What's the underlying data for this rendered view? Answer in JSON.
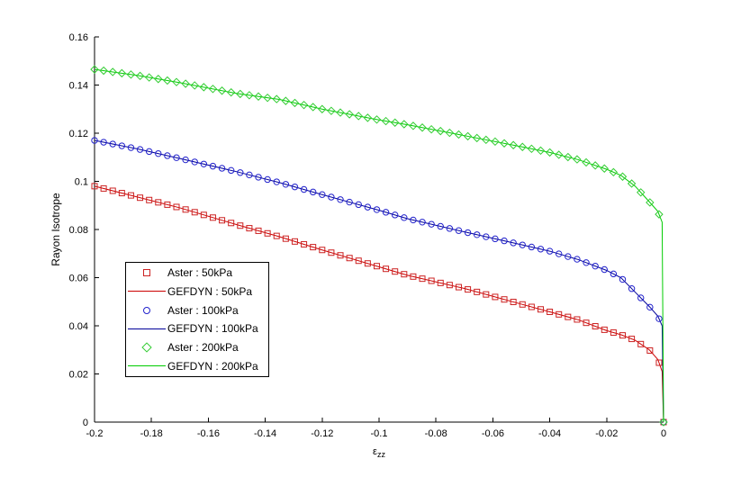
{
  "figure": {
    "background": "#ffffff",
    "axis_color": "#000000"
  },
  "chart_data": {
    "type": "line",
    "title": "",
    "xlabel": "ε_zz",
    "xlabel_base": "ε",
    "xlabel_sub": "zz",
    "ylabel": "Rayon Isotrope",
    "xlim": [
      -0.2,
      0
    ],
    "ylim": [
      0,
      0.16
    ],
    "grid": false,
    "legend_position": "inside-left-middle",
    "xticks": [
      -0.2,
      -0.18,
      -0.16,
      -0.14,
      -0.12,
      -0.1,
      -0.08,
      -0.06,
      -0.04,
      -0.02,
      0
    ],
    "xtick_labels": [
      "-0.2",
      "-0.18",
      "-0.16",
      "-0.14",
      "-0.12",
      "-0.1",
      "-0.08",
      "-0.06",
      "-0.04",
      "-0.02",
      "0"
    ],
    "yticks": [
      0,
      0.02,
      0.04,
      0.06,
      0.08,
      0.1,
      0.12,
      0.14,
      0.16
    ],
    "ytick_labels": [
      "0",
      "0.02",
      "0.04",
      "0.06",
      "0.08",
      "0.1",
      "0.12",
      "0.14",
      "0.16"
    ],
    "marker_step": 0.0032,
    "series": [
      {
        "pressure_kPa": 50,
        "marker_label": "Aster : 50kPa",
        "line_label": "GEFDYN : 50kPa",
        "marker": "square",
        "marker_color": "#cc2222",
        "line_color": "#cc0000",
        "points": [
          [
            -0.2,
            0.098
          ],
          [
            -0.185,
            0.0935
          ],
          [
            -0.17,
            0.089
          ],
          [
            -0.15,
            0.082
          ],
          [
            -0.135,
            0.077
          ],
          [
            -0.12,
            0.0715
          ],
          [
            -0.1,
            0.0645
          ],
          [
            -0.09,
            0.061
          ],
          [
            -0.07,
            0.0555
          ],
          [
            -0.05,
            0.049
          ],
          [
            -0.04,
            0.0458
          ],
          [
            -0.03,
            0.0425
          ],
          [
            -0.02,
            0.038
          ],
          [
            -0.015,
            0.0363
          ],
          [
            -0.01,
            0.034
          ],
          [
            -0.005,
            0.03
          ],
          [
            -0.002,
            0.026
          ],
          [
            -0.0005,
            0.021
          ],
          [
            0,
            0
          ]
        ]
      },
      {
        "pressure_kPa": 100,
        "marker_label": "Aster : 100kPa",
        "line_label": "GEFDYN : 100kPa",
        "marker": "circle",
        "marker_color": "#2222cc",
        "line_color": "#000099",
        "points": [
          [
            -0.2,
            0.117
          ],
          [
            -0.185,
            0.1135
          ],
          [
            -0.17,
            0.1095
          ],
          [
            -0.15,
            0.104
          ],
          [
            -0.135,
            0.0995
          ],
          [
            -0.12,
            0.0945
          ],
          [
            -0.1,
            0.088
          ],
          [
            -0.09,
            0.0845
          ],
          [
            -0.07,
            0.079
          ],
          [
            -0.05,
            0.0737
          ],
          [
            -0.04,
            0.071
          ],
          [
            -0.03,
            0.0675
          ],
          [
            -0.02,
            0.063
          ],
          [
            -0.015,
            0.06
          ],
          [
            -0.01,
            0.054
          ],
          [
            -0.005,
            0.048
          ],
          [
            -0.002,
            0.044
          ],
          [
            -0.0005,
            0.04
          ],
          [
            0,
            0
          ]
        ]
      },
      {
        "pressure_kPa": 200,
        "marker_label": "Aster : 200kPa",
        "line_label": "GEFDYN : 200kPa",
        "marker": "diamond",
        "marker_color": "#33cc33",
        "line_color": "#00cc00",
        "points": [
          [
            -0.2,
            0.1465
          ],
          [
            -0.185,
            0.144
          ],
          [
            -0.17,
            0.141
          ],
          [
            -0.15,
            0.1365
          ],
          [
            -0.135,
            0.134
          ],
          [
            -0.12,
            0.13
          ],
          [
            -0.1,
            0.1255
          ],
          [
            -0.09,
            0.1235
          ],
          [
            -0.07,
            0.119
          ],
          [
            -0.05,
            0.1144
          ],
          [
            -0.04,
            0.112
          ],
          [
            -0.03,
            0.109
          ],
          [
            -0.02,
            0.105
          ],
          [
            -0.015,
            0.1025
          ],
          [
            -0.01,
            0.098
          ],
          [
            -0.005,
            0.0915
          ],
          [
            -0.002,
            0.0875
          ],
          [
            -0.0005,
            0.083
          ],
          [
            0,
            0
          ]
        ]
      }
    ]
  },
  "legend": {
    "entries": [
      {
        "label": "Aster : 50kPa",
        "symbol": "square",
        "color": "#cc2222"
      },
      {
        "label": "GEFDYN : 50kPa",
        "symbol": "line",
        "color": "#cc0000"
      },
      {
        "label": "Aster : 100kPa",
        "symbol": "circle",
        "color": "#2222cc"
      },
      {
        "label": "GEFDYN : 100kPa",
        "symbol": "line",
        "color": "#000099"
      },
      {
        "label": "Aster : 200kPa",
        "symbol": "diamond",
        "color": "#33cc33"
      },
      {
        "label": "GEFDYN : 200kPa",
        "symbol": "line",
        "color": "#00cc00"
      }
    ]
  }
}
